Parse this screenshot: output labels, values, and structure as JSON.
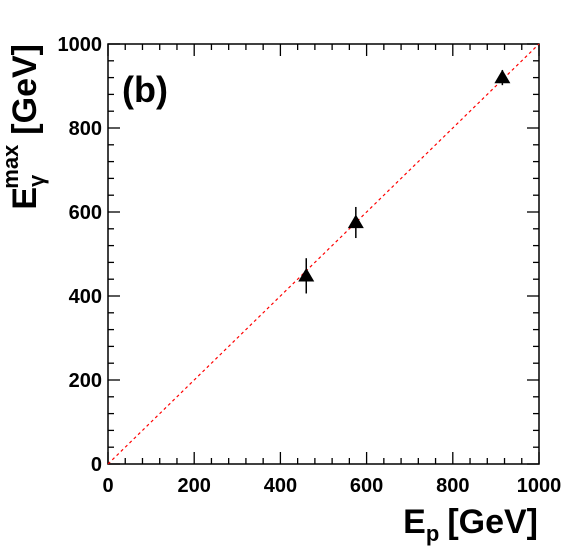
{
  "chart_data": {
    "type": "scatter",
    "panel_label": "(b)",
    "xlabel": {
      "main": "E",
      "sub": "p",
      "unit": "[GeV]"
    },
    "ylabel": {
      "main": "E",
      "sub": "γ",
      "sup": "max",
      "unit": "[GeV]"
    },
    "xlim": [
      0,
      1000
    ],
    "ylim": [
      0,
      1000
    ],
    "xticks": [
      "0",
      "200",
      "400",
      "600",
      "800",
      "1000"
    ],
    "yticks": [
      "0",
      "200",
      "400",
      "600",
      "800",
      "1000"
    ],
    "grid": false,
    "legend": "none",
    "points": [
      {
        "x": 460,
        "y": 448,
        "err": 42
      },
      {
        "x": 575,
        "y": 575,
        "err": 37
      },
      {
        "x": 915,
        "y": 920,
        "err": 18
      }
    ],
    "reference_line": {
      "x": [
        0,
        1000
      ],
      "y": [
        0,
        1000
      ],
      "style": "dashed",
      "color": "#ff0000"
    },
    "marker_color": "#000000"
  }
}
